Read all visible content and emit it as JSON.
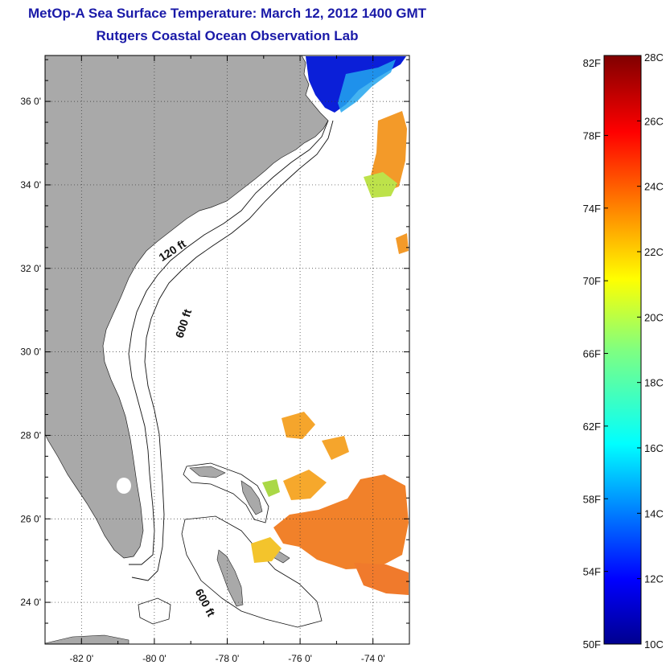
{
  "title_line_1": "MetOp-A Sea Surface Temperature:  March 12, 2012 1400 GMT",
  "title_line_2": "Rutgers Coastal Ocean Observation Lab",
  "map": {
    "lon_range": [
      -83,
      -73
    ],
    "lat_range": [
      23,
      37.1
    ],
    "lat_ticks": [
      {
        "value": 36,
        "label": "36 0'"
      },
      {
        "value": 34,
        "label": "34 0'"
      },
      {
        "value": 32,
        "label": "32 0'"
      },
      {
        "value": 30,
        "label": "30 0'"
      },
      {
        "value": 28,
        "label": "28 0'"
      },
      {
        "value": 26,
        "label": "26 0'"
      },
      {
        "value": 24,
        "label": "24 0'"
      }
    ],
    "lon_ticks": [
      {
        "value": -82,
        "label": "-82 0'"
      },
      {
        "value": -80,
        "label": "-80 0'"
      },
      {
        "value": -78,
        "label": "-78 0'"
      },
      {
        "value": -76,
        "label": "-76 0'"
      },
      {
        "value": -74,
        "label": "-74 0'"
      }
    ],
    "grid": true,
    "land_color": "#a9a9a9",
    "contour_labels": [
      {
        "text": "120 ft",
        "lon": -79.45,
        "lat": 32.35,
        "rotate": -33
      },
      {
        "text": "600 ft",
        "lon": -79.1,
        "lat": 30.65,
        "rotate": -72
      },
      {
        "text": "600 ft",
        "lon": -78.7,
        "lat": 23.95,
        "rotate": 62
      }
    ]
  },
  "colorbar": {
    "min_c": 10,
    "max_c": 28,
    "colormap": "jet",
    "top_label_f": "82F",
    "top_label_c": "28C",
    "f_ticks": [
      {
        "value": 78,
        "label": "78F"
      },
      {
        "value": 74,
        "label": "74F"
      },
      {
        "value": 70,
        "label": "70F"
      },
      {
        "value": 66,
        "label": "66F"
      },
      {
        "value": 62,
        "label": "62F"
      },
      {
        "value": 58,
        "label": "58F"
      },
      {
        "value": 54,
        "label": "54F"
      },
      {
        "value": 50,
        "label": "50F"
      }
    ],
    "c_ticks": [
      {
        "value": 26,
        "label": "26C"
      },
      {
        "value": 24,
        "label": "24C"
      },
      {
        "value": 22,
        "label": "22C"
      },
      {
        "value": 20,
        "label": "20C"
      },
      {
        "value": 18,
        "label": "18C"
      },
      {
        "value": 16,
        "label": "16C"
      },
      {
        "value": 14,
        "label": "14C"
      },
      {
        "value": 12,
        "label": "12C"
      },
      {
        "value": 10,
        "label": "10C"
      }
    ]
  }
}
